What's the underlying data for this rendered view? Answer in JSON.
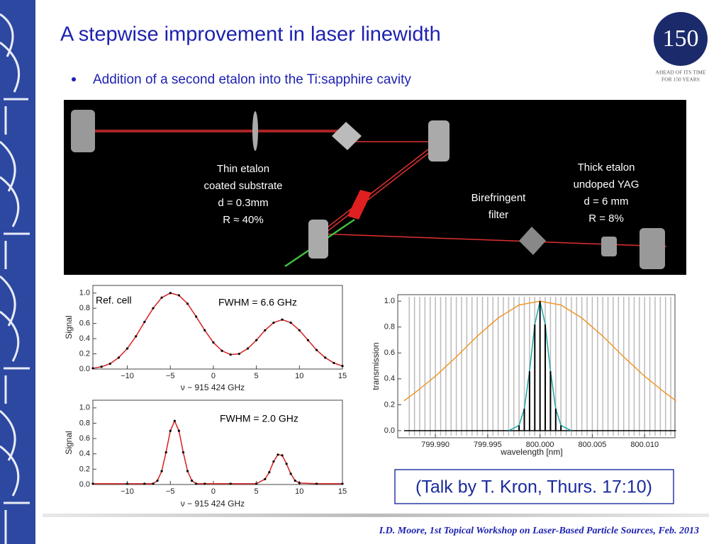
{
  "header": {
    "title": "A stepwise improvement in laser linewidth",
    "bullet": "Addition of a second etalon into the Ti:sapphire cavity"
  },
  "logo": {
    "number": "150",
    "line1": "AHEAD OF ITS TIME",
    "line2": "FOR 150 YEARS"
  },
  "diagram": {
    "labels": [
      [
        "Thin etalon",
        "coated substrate",
        "d = 0.3mm",
        "R ≈ 40%"
      ],
      [
        "Birefringent",
        "filter"
      ],
      [
        "Thick etalon",
        "undoped YAG",
        "d = 6 mm",
        "R = 8%"
      ]
    ]
  },
  "chart_data": [
    {
      "type": "line",
      "annotations": [
        "Ref. cell",
        "FWHM = 6.6 GHz"
      ],
      "x_label": "ν − 915 424 GHz",
      "y_label": "Signal",
      "x": [
        -14,
        -13,
        -12,
        -11,
        -10,
        -9,
        -8,
        -7,
        -6,
        -5,
        -4,
        -3,
        -2,
        -1,
        0,
        1,
        2,
        3,
        4,
        5,
        6,
        7,
        8,
        9,
        10,
        11,
        12,
        13,
        14,
        15
      ],
      "series": [
        {
          "color": "#d62020",
          "values": [
            0.01,
            0.03,
            0.07,
            0.15,
            0.27,
            0.43,
            0.62,
            0.8,
            0.94,
            1.0,
            0.97,
            0.86,
            0.69,
            0.51,
            0.35,
            0.24,
            0.19,
            0.2,
            0.27,
            0.38,
            0.51,
            0.61,
            0.65,
            0.61,
            0.51,
            0.38,
            0.25,
            0.15,
            0.08,
            0.04
          ]
        }
      ],
      "marker_color": "#000000",
      "xlim": [
        -14,
        15
      ],
      "ylim": [
        0,
        1.1
      ],
      "xticks": [
        {
          "value": -10,
          "label": "−10"
        },
        {
          "value": -5,
          "label": "−5"
        },
        0,
        5,
        10,
        15
      ],
      "yticks": [
        {
          "value": 0,
          "label": "0.0"
        },
        0.2,
        0.4,
        0.6,
        0.8,
        {
          "value": 1,
          "label": "1.0"
        }
      ]
    },
    {
      "type": "line",
      "annotations": [
        "FWHM = 2.0 GHz"
      ],
      "x_label": "ν − 915 424 GHz",
      "y_label": "Signal",
      "x": [
        -14,
        -10,
        -8,
        -7,
        -6.5,
        -6,
        -5.5,
        -5,
        -4.5,
        -4,
        -3.5,
        -3,
        -2.5,
        -2,
        -1,
        2,
        5,
        6,
        6.5,
        7,
        7.5,
        8,
        8.5,
        9,
        9.5,
        10,
        12,
        15
      ],
      "series": [
        {
          "color": "#d62020",
          "values": [
            0.01,
            0.01,
            0.01,
            0.01,
            0.05,
            0.175,
            0.42,
            0.7,
            0.83,
            0.7,
            0.42,
            0.175,
            0.05,
            0.01,
            0.01,
            0.01,
            0.01,
            0.07,
            0.16,
            0.3,
            0.39,
            0.38,
            0.27,
            0.14,
            0.05,
            0.02,
            0.01,
            0.01
          ]
        }
      ],
      "marker_color": "#000000",
      "xlim": [
        -14,
        15
      ],
      "ylim": [
        0,
        1.1
      ],
      "xticks": [
        {
          "value": -10,
          "label": "−10"
        },
        {
          "value": -5,
          "label": "−5"
        },
        0,
        5,
        10,
        15
      ],
      "yticks": [
        {
          "value": 0,
          "label": "0.0"
        },
        0.2,
        0.4,
        0.6,
        0.8,
        {
          "value": 1,
          "label": "1.0"
        }
      ]
    },
    {
      "type": "line",
      "annotations": [],
      "x_label": "wavelength [nm]",
      "y_label": "transmission",
      "mode_lines": {
        "color": "#bbbbbb",
        "x": [
          799.9875,
          799.988,
          799.9885,
          799.989,
          799.9895,
          799.99,
          799.9905,
          799.991,
          799.9915,
          799.992,
          799.9925,
          799.993,
          799.9935,
          799.994,
          799.9945,
          799.995,
          799.9955,
          799.996,
          799.9965,
          799.997,
          799.9975,
          799.998,
          799.9985,
          799.999,
          799.9995,
          800,
          800.0005,
          800.001,
          800.0015,
          800.002,
          800.0025,
          800.003,
          800.0035,
          800.004,
          800.0045,
          800.005,
          800.0055,
          800.006,
          800.0065,
          800.007,
          800.0075,
          800.008,
          800.0085,
          800.009,
          800.0095,
          800.01,
          800.0105,
          800.011,
          800.0115,
          800.012,
          800.0125
        ]
      },
      "series": [
        {
          "color": "#f0962a",
          "x": [
            799.987,
            799.988,
            799.99,
            799.992,
            799.994,
            799.996,
            799.998,
            800,
            800.002,
            800.004,
            800.006,
            800.008,
            800.01,
            800.012,
            800.013
          ],
          "values": [
            0.23,
            0.29,
            0.42,
            0.57,
            0.73,
            0.87,
            0.97,
            1.0,
            0.97,
            0.87,
            0.73,
            0.57,
            0.42,
            0.29,
            0.23
          ]
        },
        {
          "color": "#1aa8a8",
          "x": [
            799.997,
            799.998,
            799.9985,
            799.999,
            799.9995,
            800,
            800.0005,
            800.001,
            800.0015,
            800.002,
            800.003
          ],
          "values": [
            0,
            0.04,
            0.17,
            0.46,
            0.82,
            1.0,
            0.82,
            0.46,
            0.17,
            0.04,
            0
          ]
        },
        {
          "color": "#000000",
          "style": "stems",
          "x": [
            799.998,
            799.9985,
            799.999,
            799.9995,
            800,
            800.0005,
            800.001,
            800.0015,
            800.002
          ],
          "values": [
            0.04,
            0.17,
            0.46,
            0.82,
            1.0,
            0.82,
            0.46,
            0.17,
            0.04
          ]
        }
      ],
      "xlim": [
        799.9864,
        800.0129
      ],
      "ylim": [
        -0.055,
        1.05
      ],
      "xticks": [
        {
          "value": 799.99,
          "label": "799.990"
        },
        {
          "value": 799.995,
          "label": "799.995"
        },
        {
          "value": 800,
          "label": "800.000"
        },
        {
          "value": 800.005,
          "label": "800.005"
        },
        {
          "value": 800.01,
          "label": "800.010"
        }
      ],
      "yticks": [
        {
          "value": 0,
          "label": "0.0"
        },
        0.2,
        0.4,
        0.6,
        0.8,
        {
          "value": 1,
          "label": "1.0"
        }
      ]
    }
  ],
  "talk": "(Talk by T. Kron, Thurs. 17:10)",
  "footer": "I.D. Moore, 1st Topical Workshop on Laser-Based Particle Sources, Feb. 2013"
}
